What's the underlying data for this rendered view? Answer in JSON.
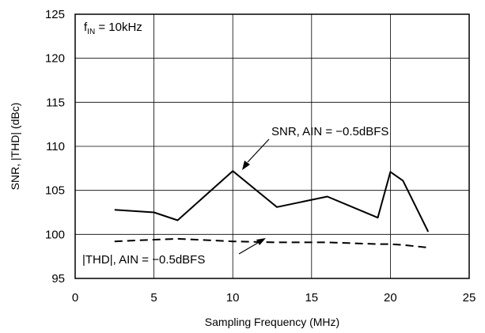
{
  "chart_data": {
    "type": "line",
    "title": "",
    "xlabel": "Sampling Frequency (MHz)",
    "ylabel": "SNR, |THD| (dBc)",
    "xlim": [
      0,
      25
    ],
    "ylim": [
      95,
      125
    ],
    "x_ticks": [
      "0",
      "5",
      "10",
      "15",
      "20",
      "25"
    ],
    "y_ticks": [
      "95",
      "100",
      "105",
      "110",
      "115",
      "120",
      "125"
    ],
    "grid": true,
    "condition": {
      "main": "f",
      "subscript": "IN",
      "rest": " = 10kHz"
    },
    "series": [
      {
        "name": "SNR, AIN = −0.5dBFS",
        "style": "solid",
        "color": "#000000",
        "x": [
          2.5,
          5,
          6.5,
          10,
          12.8,
          16,
          19.2,
          20,
          20.8,
          22.4
        ],
        "y": [
          102.8,
          102.5,
          101.6,
          107.2,
          103.1,
          104.3,
          101.9,
          107.1,
          106.1,
          100.3
        ]
      },
      {
        "name": "|THD|, AIN = −0.5dBFS",
        "style": "dashed",
        "color": "#000000",
        "x": [
          2.5,
          5,
          6.5,
          10,
          12.8,
          16,
          19.2,
          20,
          20.8,
          22.4
        ],
        "y": [
          99.2,
          99.4,
          99.5,
          99.2,
          99.1,
          99.1,
          98.9,
          98.9,
          98.8,
          98.5
        ]
      }
    ]
  }
}
